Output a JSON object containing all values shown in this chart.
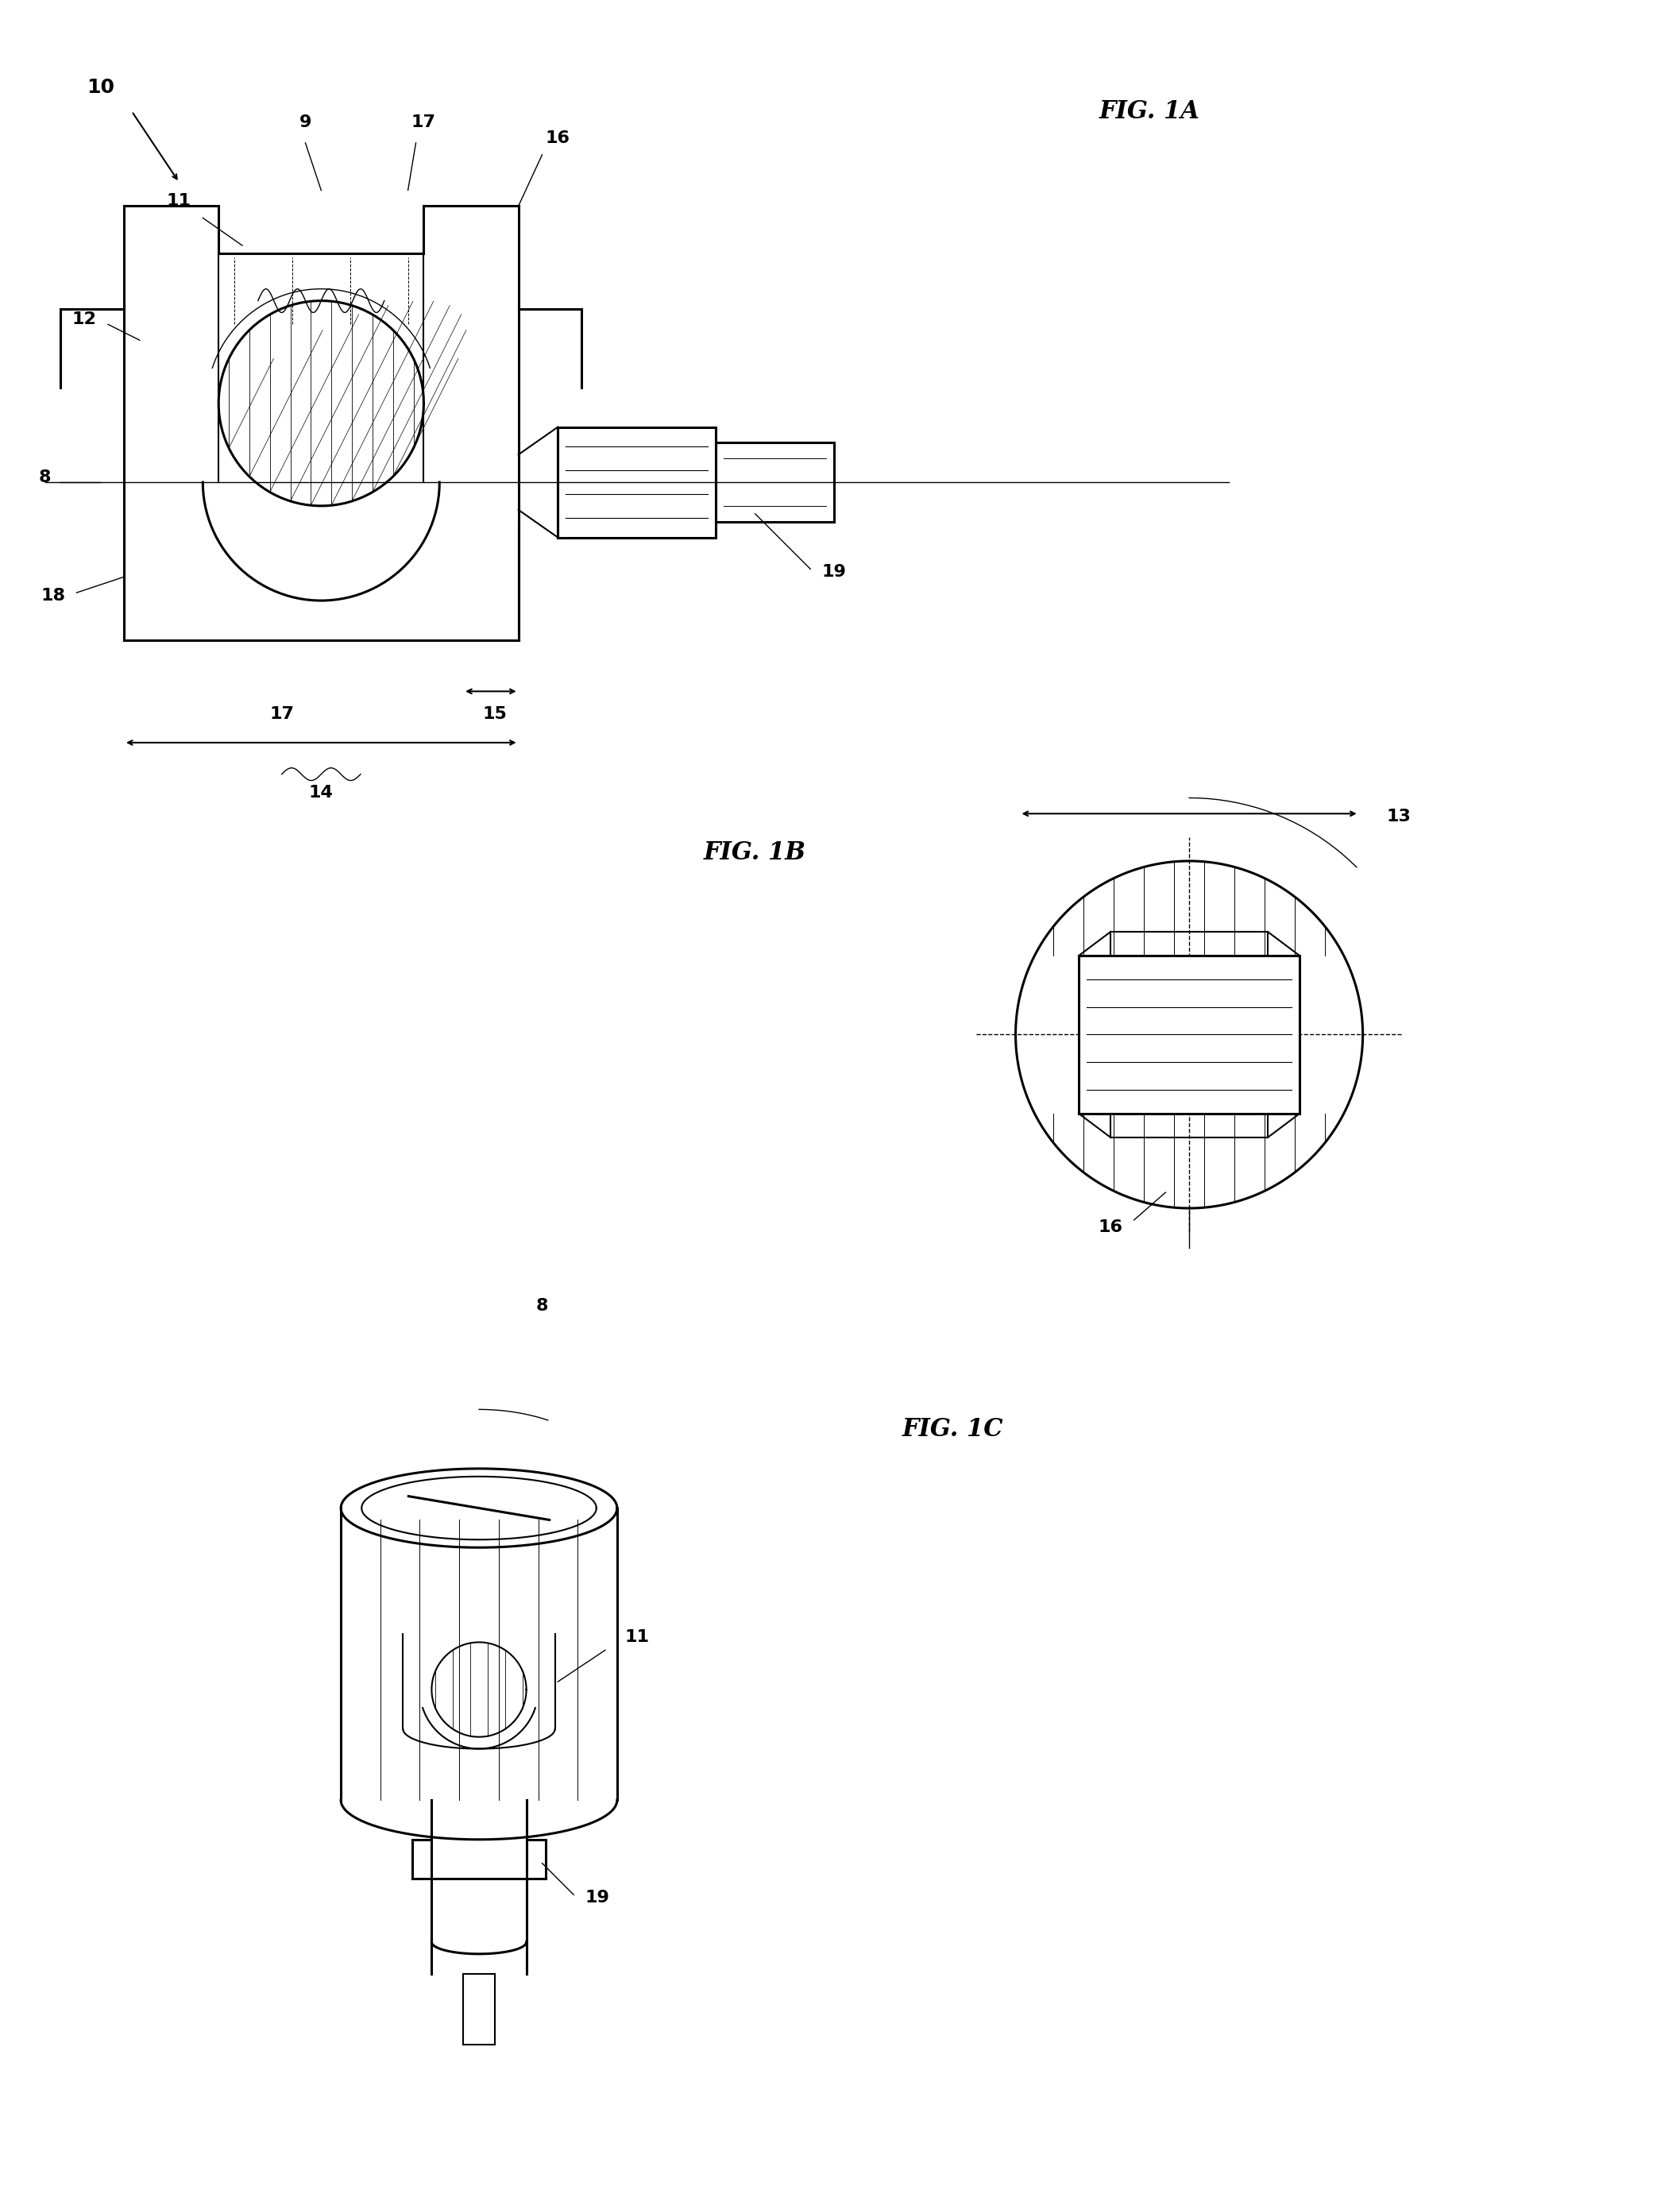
{
  "bg_color": "#ffffff",
  "line_color": "#000000",
  "hatch_color": "#000000",
  "fig_width": 21.15,
  "fig_height": 27.52,
  "labels": {
    "fig1a": "FIG. 1A",
    "fig1b": "FIG. 1B",
    "fig1c": "FIG. 1C",
    "ref10": "10",
    "ref11_1a": "11",
    "ref9": "9",
    "ref17_top": "17",
    "ref16_1a": "16",
    "ref12": "12",
    "ref8_1a": "8",
    "ref18": "18",
    "ref17_bot": "17",
    "ref15": "15",
    "ref14": "14",
    "ref19_1a": "19",
    "ref13": "13",
    "ref16_1b": "16",
    "ref8_1c": "8",
    "ref11_1c": "11",
    "ref19_1c": "19"
  }
}
